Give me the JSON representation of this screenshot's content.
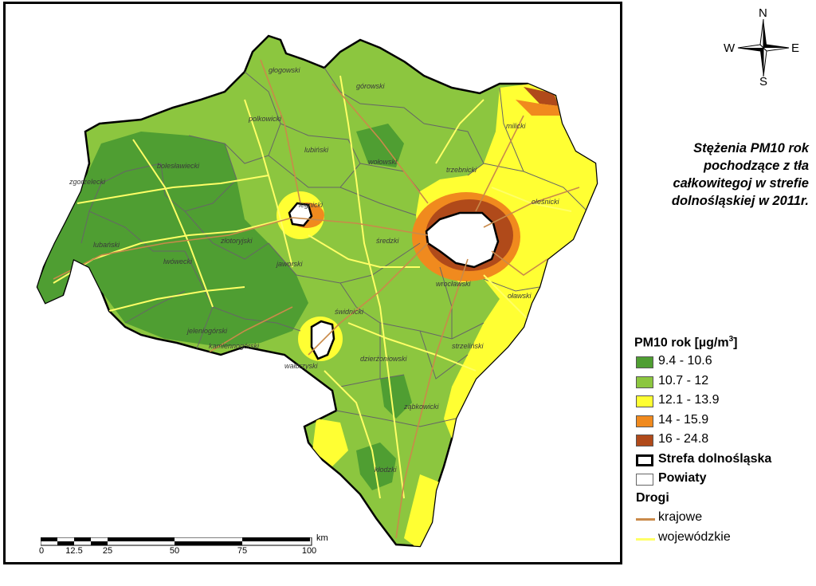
{
  "title": {
    "line1": "Stężenia PM10 rok",
    "line2": "pochodzące z tła",
    "line3": "całkowitegoj w strefie",
    "line4": "dolnośląskiej w 2011r."
  },
  "compass": {
    "n": "N",
    "s": "S",
    "e": "E",
    "w": "W"
  },
  "legend": {
    "header": "PM10 rok [µg/m",
    "header_sup": "3",
    "header_end": "]",
    "classes": [
      {
        "label": "9.4 - 10.6",
        "color": "#4f9e32"
      },
      {
        "label": "10.7 - 12",
        "color": "#8cc63f"
      },
      {
        "label": "12.1 - 13.9",
        "color": "#ffff33"
      },
      {
        "label": "14 - 15.9",
        "color": "#f08a1e"
      },
      {
        "label": "16 - 24.8",
        "color": "#b04a1a"
      }
    ],
    "zone_label": "Strefa dolnośląska",
    "powiaty_label": "Powiaty",
    "roads_header": "Drogi",
    "road_national": "krajowe",
    "road_national_color": "#c98a4a",
    "road_voivodeship": "wojewódzkie",
    "road_voivodeship_color": "#ffff66"
  },
  "scalebar": {
    "unit": "km",
    "ticks": [
      "0",
      "12.5",
      "25",
      "50",
      "75",
      "100"
    ]
  },
  "powiaty": [
    "głogowski",
    "górowski",
    "polkowicki",
    "milicki",
    "lubiński",
    "wołowski",
    "trzebnicki",
    "bolesławiecki",
    "zgorzelecki",
    "oleśnicki",
    "legnicki",
    "średzki",
    "lubański",
    "złotoryjski",
    "lwówecki",
    "jaworski",
    "wrocławski",
    "oławski",
    "jeleniogórski",
    "świdnicki",
    "kamiennogórski",
    "wałbrzyski",
    "dzierżoniowski",
    "strzeliński",
    "ząbkowicki",
    "kłodzki"
  ]
}
